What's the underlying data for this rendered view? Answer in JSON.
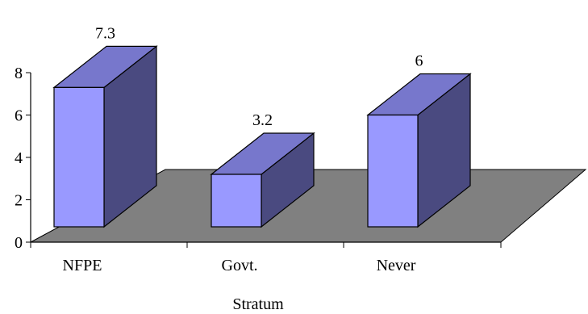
{
  "chart_data": {
    "type": "bar",
    "categories": [
      "NFPE",
      "Govt.",
      "Never"
    ],
    "values": [
      7.3,
      3.2,
      6
    ],
    "data_labels": [
      "7.3",
      "3.2",
      "6"
    ],
    "title": "",
    "xlabel": "Stratum",
    "ylabel": "",
    "ylim": [
      0,
      8
    ],
    "yticks": [
      0,
      2,
      4,
      6,
      8
    ],
    "ytick_labels": [
      "0",
      "2",
      "4",
      "6",
      "8"
    ],
    "grid": false,
    "legend": false,
    "style": "3d-column",
    "colors": {
      "bar_front": "#9999ff",
      "bar_side": "#4a4a80",
      "bar_top": "#7777cc",
      "floor": "#808080",
      "outline": "#000000"
    }
  }
}
